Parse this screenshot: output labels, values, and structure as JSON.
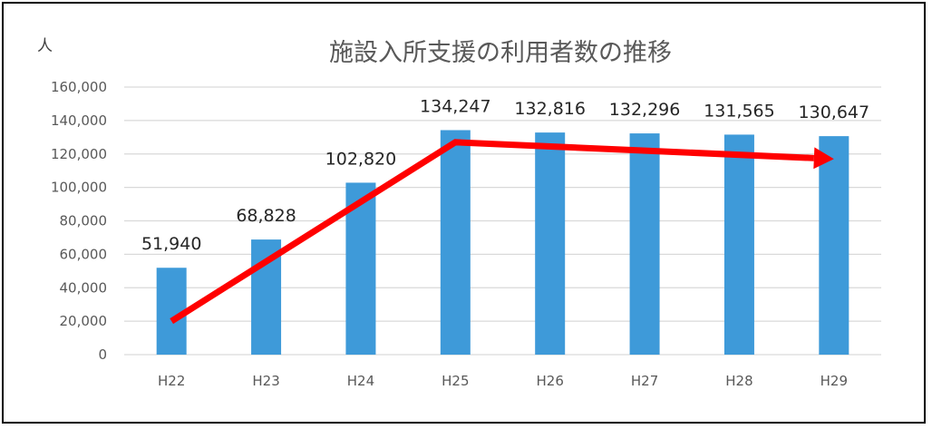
{
  "chart_data": {
    "type": "bar",
    "title": "施設入所支援の利用者数の推移",
    "ylabel": "人",
    "xlabel": "",
    "categories": [
      "H22",
      "H23",
      "H24",
      "H25",
      "H26",
      "H27",
      "H28",
      "H29"
    ],
    "values": [
      51940,
      68828,
      102820,
      134247,
      132816,
      132296,
      131565,
      130647
    ],
    "data_labels": [
      "51,940",
      "68,828",
      "102,820",
      "134,247",
      "132,816",
      "132,296",
      "131,565",
      "130,647"
    ],
    "ylim": [
      0,
      160000
    ],
    "yticks": [
      0,
      20000,
      40000,
      60000,
      80000,
      100000,
      120000,
      140000,
      160000
    ],
    "ytick_labels": [
      "0",
      "20,000",
      "40,000",
      "60,000",
      "80,000",
      "100,000",
      "120,000",
      "140,000",
      "160,000"
    ],
    "grid": true,
    "bar_color": "#3E9AD9",
    "grid_color": "#D9D9D9",
    "trend_arrow": {
      "color": "#FF0000",
      "points": [
        {
          "category": "H22",
          "value": 20000
        },
        {
          "category": "H25",
          "value": 127000
        },
        {
          "category": "H29",
          "value": 117000
        }
      ]
    }
  }
}
